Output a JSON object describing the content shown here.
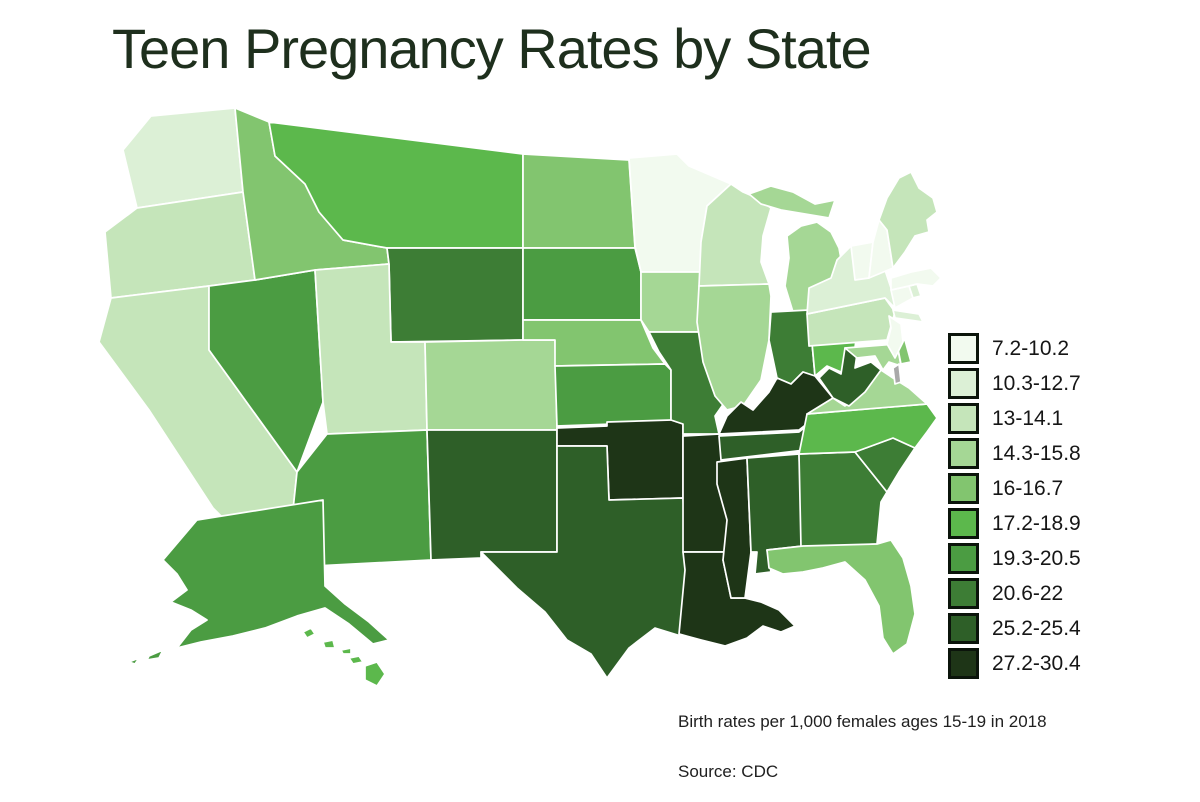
{
  "title": "Teen Pregnancy Rates by State",
  "caption": "Birth rates per 1,000 females ages 15-19 in 2018",
  "source": "Source: CDC",
  "colors": {
    "background": "#ffffff",
    "state_border": "#ffffff",
    "legend_swatch_border": "#0b140b",
    "title_text": "#1e2f1d",
    "body_text": "#202020",
    "no_data": "#a9a9a9"
  },
  "chart_data": {
    "type": "choropleth",
    "title": "Teen Pregnancy Rates by State",
    "unit": "Birth rates per 1,000 females ages 15-19 in 2018",
    "source": "CDC",
    "legend_position": "right",
    "classes": [
      {
        "label": "7.2-10.2",
        "color": "#f2faef"
      },
      {
        "label": "10.3-12.7",
        "color": "#dcf0d6"
      },
      {
        "label": "13-14.1",
        "color": "#c5e5ba"
      },
      {
        "label": "14.3-15.8",
        "color": "#a5d795"
      },
      {
        "label": "16-16.7",
        "color": "#82c56f"
      },
      {
        "label": "17.2-18.9",
        "color": "#5cb84c"
      },
      {
        "label": "19.3-20.5",
        "color": "#4b9c42"
      },
      {
        "label": "20.6-22",
        "color": "#3d7d35"
      },
      {
        "label": "25.2-25.4",
        "color": "#2e5f28"
      },
      {
        "label": "27.2-30.4",
        "color": "#1e3517"
      }
    ],
    "states": [
      {
        "id": "WA",
        "name": "Washington",
        "class": 2,
        "range": "10.3-12.7"
      },
      {
        "id": "OR",
        "name": "Oregon",
        "class": 3,
        "range": "13-14.1"
      },
      {
        "id": "CA",
        "name": "California",
        "class": 3,
        "range": "13-14.1"
      },
      {
        "id": "NV",
        "name": "Nevada",
        "class": 7,
        "range": "19.3-20.5"
      },
      {
        "id": "ID",
        "name": "Idaho",
        "class": 5,
        "range": "16-16.7"
      },
      {
        "id": "MT",
        "name": "Montana",
        "class": 6,
        "range": "17.2-18.9"
      },
      {
        "id": "WY",
        "name": "Wyoming",
        "class": 8,
        "range": "20.6-22"
      },
      {
        "id": "UT",
        "name": "Utah",
        "class": 3,
        "range": "13-14.1"
      },
      {
        "id": "CO",
        "name": "Colorado",
        "class": 4,
        "range": "14.3-15.8"
      },
      {
        "id": "AZ",
        "name": "Arizona",
        "class": 7,
        "range": "19.3-20.5"
      },
      {
        "id": "NM",
        "name": "New Mexico",
        "class": 9,
        "range": "25.2-25.4"
      },
      {
        "id": "ND",
        "name": "North Dakota",
        "class": 5,
        "range": "16-16.7"
      },
      {
        "id": "SD",
        "name": "South Dakota",
        "class": 7,
        "range": "19.3-20.5"
      },
      {
        "id": "NE",
        "name": "Nebraska",
        "class": 5,
        "range": "16-16.7"
      },
      {
        "id": "KS",
        "name": "Kansas",
        "class": 7,
        "range": "19.3-20.5"
      },
      {
        "id": "OK",
        "name": "Oklahoma",
        "class": 10,
        "range": "27.2-30.4"
      },
      {
        "id": "TX",
        "name": "Texas",
        "class": 9,
        "range": "25.2-25.4"
      },
      {
        "id": "MN",
        "name": "Minnesota",
        "class": 1,
        "range": "7.2-10.2"
      },
      {
        "id": "IA",
        "name": "Iowa",
        "class": 4,
        "range": "14.3-15.8"
      },
      {
        "id": "MO",
        "name": "Missouri",
        "class": 8,
        "range": "20.6-22"
      },
      {
        "id": "AR",
        "name": "Arkansas",
        "class": 10,
        "range": "27.2-30.4"
      },
      {
        "id": "LA",
        "name": "Louisiana",
        "class": 10,
        "range": "27.2-30.4"
      },
      {
        "id": "WI",
        "name": "Wisconsin",
        "class": 3,
        "range": "13-14.1"
      },
      {
        "id": "IL",
        "name": "Illinois",
        "class": 4,
        "range": "14.3-15.8"
      },
      {
        "id": "MI",
        "name": "Michigan",
        "class": 4,
        "range": "14.3-15.8"
      },
      {
        "id": "IN",
        "name": "Indiana",
        "class": 8,
        "range": "20.6-22"
      },
      {
        "id": "OH",
        "name": "Ohio",
        "class": 6,
        "range": "17.2-18.9"
      },
      {
        "id": "KY",
        "name": "Kentucky",
        "class": 10,
        "range": "27.2-30.4"
      },
      {
        "id": "TN",
        "name": "Tennessee",
        "class": 9,
        "range": "25.2-25.4"
      },
      {
        "id": "MS",
        "name": "Mississippi",
        "class": 10,
        "range": "27.2-30.4"
      },
      {
        "id": "AL",
        "name": "Alabama",
        "class": 9,
        "range": "25.2-25.4"
      },
      {
        "id": "GA",
        "name": "Georgia",
        "class": 8,
        "range": "20.6-22"
      },
      {
        "id": "FL",
        "name": "Florida",
        "class": 5,
        "range": "16-16.7"
      },
      {
        "id": "SC",
        "name": "South Carolina",
        "class": 8,
        "range": "20.6-22"
      },
      {
        "id": "NC",
        "name": "North Carolina",
        "class": 6,
        "range": "17.2-18.9"
      },
      {
        "id": "VA",
        "name": "Virginia",
        "class": 4,
        "range": "14.3-15.8"
      },
      {
        "id": "WV",
        "name": "West Virginia",
        "class": 9,
        "range": "25.2-25.4"
      },
      {
        "id": "MD",
        "name": "Maryland",
        "class": 4,
        "range": "14.3-15.8"
      },
      {
        "id": "DE",
        "name": "Delaware",
        "class": 5,
        "range": "16-16.7"
      },
      {
        "id": "PA",
        "name": "Pennsylvania",
        "class": 3,
        "range": "13-14.1"
      },
      {
        "id": "NJ",
        "name": "New Jersey",
        "class": 1,
        "range": "7.2-10.2"
      },
      {
        "id": "NY",
        "name": "New York",
        "class": 2,
        "range": "10.3-12.7"
      },
      {
        "id": "CT",
        "name": "Connecticut",
        "class": 1,
        "range": "7.2-10.2"
      },
      {
        "id": "RI",
        "name": "Rhode Island",
        "class": 2,
        "range": "10.3-12.7"
      },
      {
        "id": "MA",
        "name": "Massachusetts",
        "class": 1,
        "range": "7.2-10.2"
      },
      {
        "id": "VT",
        "name": "Vermont",
        "class": 1,
        "range": "7.2-10.2"
      },
      {
        "id": "NH",
        "name": "New Hampshire",
        "class": 1,
        "range": "7.2-10.2"
      },
      {
        "id": "ME",
        "name": "Maine",
        "class": 3,
        "range": "13-14.1"
      },
      {
        "id": "AK",
        "name": "Alaska",
        "class": 7,
        "range": "19.3-20.5"
      },
      {
        "id": "HI",
        "name": "Hawaii",
        "class": 6,
        "range": "17.2-18.9"
      },
      {
        "id": "DC",
        "name": "District of Columbia",
        "class": 0,
        "range": "no data"
      }
    ]
  }
}
